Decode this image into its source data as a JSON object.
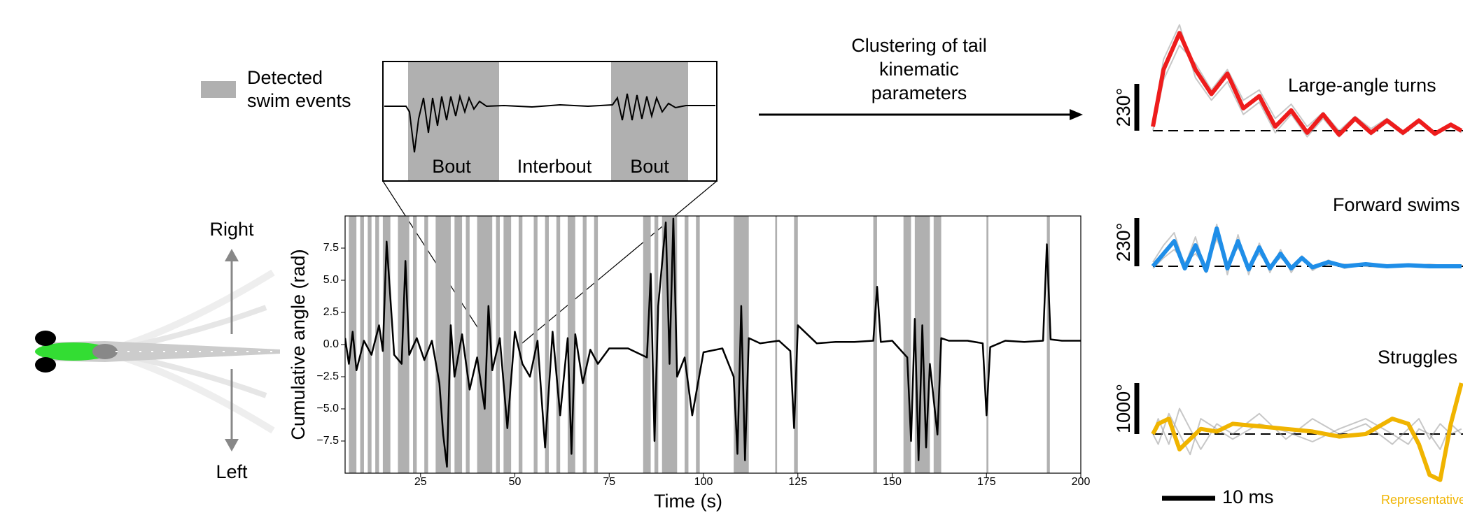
{
  "inset": {
    "labels": [
      "Bout",
      "Interbout",
      "Bout"
    ]
  },
  "arrow_label": [
    "Clustering of tail",
    "kinematic",
    "parameters"
  ],
  "fish": {
    "up_label": "Right",
    "down_label": "Left"
  },
  "chart_data": [
    {
      "type": "line",
      "xlabel": "Time (s)",
      "ylabel": "Cumulative angle (rad)",
      "xlim": [
        5,
        200
      ],
      "ylim": [
        -10,
        10
      ],
      "xticks": [
        25,
        50,
        75,
        100,
        125,
        150,
        175,
        200
      ],
      "yticks": [
        {
          "value": -7.5,
          "label": "−7.5"
        },
        {
          "value": -5,
          "label": "−5.0"
        },
        {
          "value": -2.5,
          "label": "−2.5"
        },
        {
          "value": 0,
          "label": "0.0"
        },
        {
          "value": 2.5,
          "label": "2.5"
        },
        {
          "value": 5,
          "label": "5.0"
        },
        {
          "value": 7.5,
          "label": "7.5"
        }
      ],
      "legend": {
        "label": [
          "Detected",
          "swim events"
        ],
        "color": "#b0b0b0"
      },
      "swim_events": [
        [
          6,
          8
        ],
        [
          9,
          10
        ],
        [
          11,
          12
        ],
        [
          13,
          14
        ],
        [
          15,
          17
        ],
        [
          19,
          22
        ],
        [
          23,
          24
        ],
        [
          26,
          27
        ],
        [
          29,
          33
        ],
        [
          34,
          36
        ],
        [
          37,
          38
        ],
        [
          40,
          44
        ],
        [
          45,
          46
        ],
        [
          47,
          49
        ],
        [
          51,
          52
        ],
        [
          55,
          56
        ],
        [
          58,
          59
        ],
        [
          61,
          62
        ],
        [
          64,
          66
        ],
        [
          68,
          69
        ],
        [
          71,
          72
        ],
        [
          84,
          86
        ],
        [
          87,
          88
        ],
        [
          89,
          93
        ],
        [
          95,
          96
        ],
        [
          98,
          99
        ],
        [
          108,
          112
        ],
        [
          119,
          119.5
        ],
        [
          124,
          125
        ],
        [
          145,
          146
        ],
        [
          153,
          155
        ],
        [
          156,
          160
        ],
        [
          161,
          163
        ],
        [
          175,
          175.5
        ],
        [
          191,
          191.8
        ]
      ],
      "x": [
        5,
        6,
        7,
        8,
        10,
        12,
        14,
        15,
        16,
        18,
        20,
        21,
        22,
        24,
        26,
        28,
        30,
        31,
        32,
        33,
        34,
        36,
        38,
        40,
        42,
        43,
        44,
        46,
        48,
        50,
        52,
        54,
        56,
        58,
        60,
        62,
        64,
        65,
        66,
        68,
        70,
        72,
        75,
        80,
        85,
        86,
        87,
        88,
        90,
        91,
        92,
        93,
        95,
        97,
        100,
        105,
        108,
        109,
        110,
        111,
        112,
        115,
        120,
        123,
        124,
        125,
        130,
        135,
        140,
        145,
        146,
        147,
        150,
        154,
        155,
        156,
        157,
        158,
        159,
        160,
        162,
        163,
        165,
        170,
        174,
        175,
        176,
        180,
        185,
        190,
        191,
        192,
        195,
        200
      ],
      "series": [
        {
          "color": "#000000",
          "values": [
            0.5,
            -1.5,
            1.0,
            -2.0,
            0.3,
            -0.8,
            1.5,
            -0.5,
            8.0,
            -0.8,
            -1.5,
            6.5,
            -0.8,
            0.5,
            -1.2,
            0.3,
            -3.0,
            -7.0,
            -9.5,
            1.5,
            -2.5,
            0.8,
            -3.5,
            -1.0,
            -5.0,
            3.0,
            -2.0,
            0.5,
            -6.5,
            1.0,
            -1.5,
            -2.5,
            0.3,
            -8.0,
            1.0,
            -5.5,
            0.5,
            -8.5,
            0.8,
            -3.0,
            -0.4,
            -1.5,
            -0.3,
            -0.3,
            -1.0,
            5.5,
            -7.5,
            3.0,
            9.5,
            -1.5,
            9.8,
            -2.5,
            -1.0,
            -5.5,
            -0.6,
            -0.3,
            -2.5,
            -8.5,
            3.0,
            -9.0,
            0.5,
            0.1,
            0.3,
            -0.5,
            -6.5,
            1.5,
            0.1,
            0.2,
            0.2,
            0.3,
            4.5,
            0.2,
            0.3,
            -1.0,
            -7.5,
            2.0,
            -9.0,
            1.5,
            -8.0,
            -1.5,
            -7.0,
            0.5,
            0.3,
            0.3,
            0.1,
            -5.5,
            -0.2,
            0.3,
            0.2,
            0.3,
            7.8,
            0.4,
            0.3,
            0.3
          ]
        }
      ]
    },
    {
      "type": "line",
      "title": "Large-angle turns",
      "scale_bar": {
        "value": 230,
        "label": "230°"
      },
      "x": [
        0,
        2,
        5,
        8,
        11,
        14,
        17,
        20,
        23,
        26,
        29,
        32,
        35,
        38,
        41,
        44,
        47,
        50,
        53,
        56,
        58
      ],
      "series": [
        {
          "color": "#999999",
          "values": [
            0,
            250,
            420,
            330,
            200,
            300,
            150,
            200,
            60,
            130,
            20,
            90,
            0,
            70,
            10,
            60,
            0,
            40,
            -10,
            20,
            0
          ]
        },
        {
          "color": "#999999",
          "values": [
            40,
            350,
            520,
            260,
            150,
            240,
            80,
            140,
            -10,
            80,
            -30,
            60,
            -30,
            50,
            -20,
            40,
            -20,
            40,
            -20,
            20,
            -10
          ]
        },
        {
          "color": "#ee1c1c",
          "values": [
            20,
            300,
            480,
            300,
            180,
            280,
            110,
            170,
            20,
            100,
            -10,
            80,
            -20,
            60,
            -10,
            50,
            -10,
            50,
            -15,
            30,
            0
          ]
        }
      ]
    },
    {
      "type": "line",
      "title": "Forward swims",
      "scale_bar": {
        "value": 230,
        "label": "230°"
      },
      "x": [
        0,
        2,
        4,
        6,
        8,
        10,
        12,
        14,
        16,
        18,
        20,
        22,
        24,
        26,
        28,
        30,
        33,
        36,
        40,
        44,
        48,
        52,
        56,
        58
      ],
      "series": [
        {
          "color": "#999999",
          "values": [
            20,
            100,
            160,
            0,
            140,
            -30,
            200,
            -40,
            150,
            -40,
            110,
            -30,
            80,
            -30,
            50,
            -20,
            30,
            -10,
            15,
            5,
            0,
            10,
            0,
            0
          ]
        },
        {
          "color": "#999999",
          "values": [
            -10,
            40,
            80,
            20,
            60,
            0,
            130,
            10,
            90,
            0,
            60,
            0,
            40,
            0,
            30,
            0,
            10,
            10,
            0,
            -5,
            0,
            5,
            0,
            0
          ]
        },
        {
          "color": "#1f8ee8",
          "values": [
            0,
            60,
            120,
            -10,
            100,
            -20,
            180,
            -10,
            120,
            -15,
            90,
            -10,
            60,
            -10,
            40,
            -5,
            20,
            0,
            10,
            0,
            5,
            0,
            0,
            0
          ]
        }
      ]
    },
    {
      "type": "line",
      "title": "Struggles",
      "scale_bar": {
        "value": 1000,
        "label": "1000°"
      },
      "time_bar": {
        "value": 10,
        "label": "10 ms"
      },
      "note": "Representative",
      "x": [
        0,
        1,
        3,
        5,
        7,
        9,
        12,
        15,
        20,
        25,
        30,
        35,
        40,
        45,
        48,
        50,
        52,
        54,
        56,
        58
      ],
      "series": [
        {
          "color": "#999999",
          "values": [
            0,
            300,
            -200,
            500,
            100,
            -300,
            200,
            0,
            400,
            -100,
            300,
            0,
            200,
            -200,
            100,
            300,
            -100,
            200,
            0,
            100
          ]
        },
        {
          "color": "#999999",
          "values": [
            0,
            -200,
            400,
            0,
            -400,
            300,
            100,
            -100,
            200,
            50,
            -150,
            100,
            300,
            0,
            -200,
            100,
            0,
            -300,
            200,
            0
          ]
        },
        {
          "color": "#f0b400",
          "values": [
            0,
            200,
            300,
            -300,
            -100,
            100,
            50,
            200,
            150,
            100,
            50,
            -50,
            0,
            300,
            200,
            -200,
            -800,
            -900,
            200,
            1000
          ]
        }
      ]
    }
  ]
}
